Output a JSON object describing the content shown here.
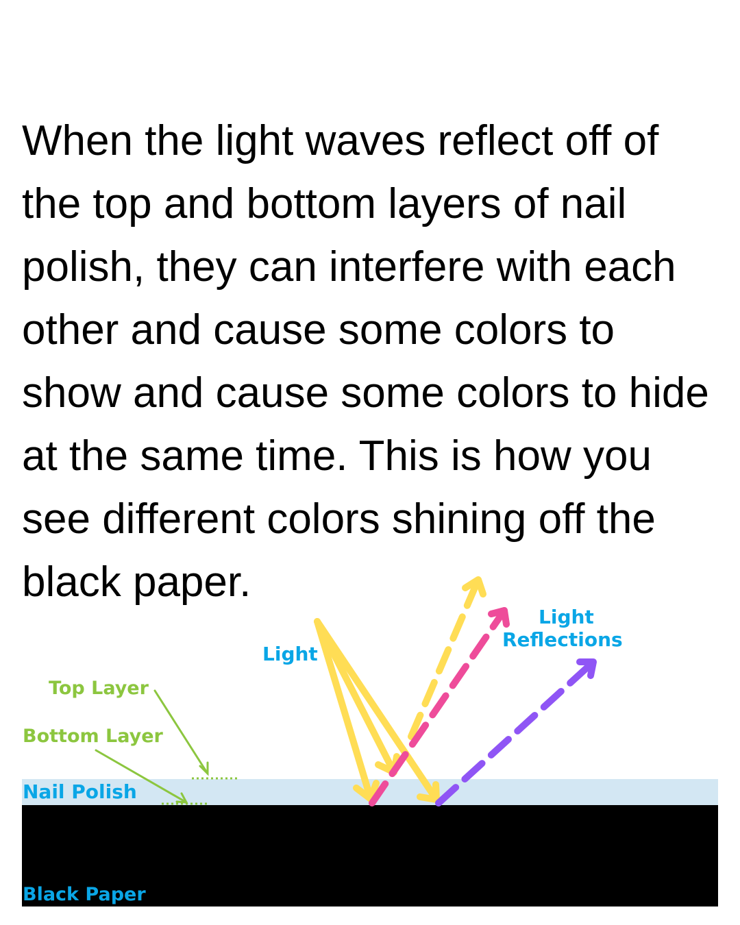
{
  "paragraph": "When the light waves reflect off of the top and bottom layers of nail polish, they can interfere with each other and cause some colors to show and cause some colors to hide at the same time. This is how you see different colors shining off the black paper.",
  "labels": {
    "light": "Light",
    "light_reflections_line1": "Light",
    "light_reflections_line2": "Reflections",
    "top_layer": "Top Layer",
    "bottom_layer": "Bottom Layer",
    "nail_polish": "Nail Polish",
    "black_paper": "Black Paper"
  },
  "colors": {
    "text": "#000000",
    "label_blue": "#0aa6e6",
    "label_green": "#8cc63f",
    "nail_polish_layer": "#d3e7f3",
    "black_paper": "#000000",
    "incident_light": "#ffdd55",
    "reflection_yellow": "#ffdd55",
    "reflection_pink": "#ee4c9a",
    "reflection_purple": "#8f55f5"
  }
}
